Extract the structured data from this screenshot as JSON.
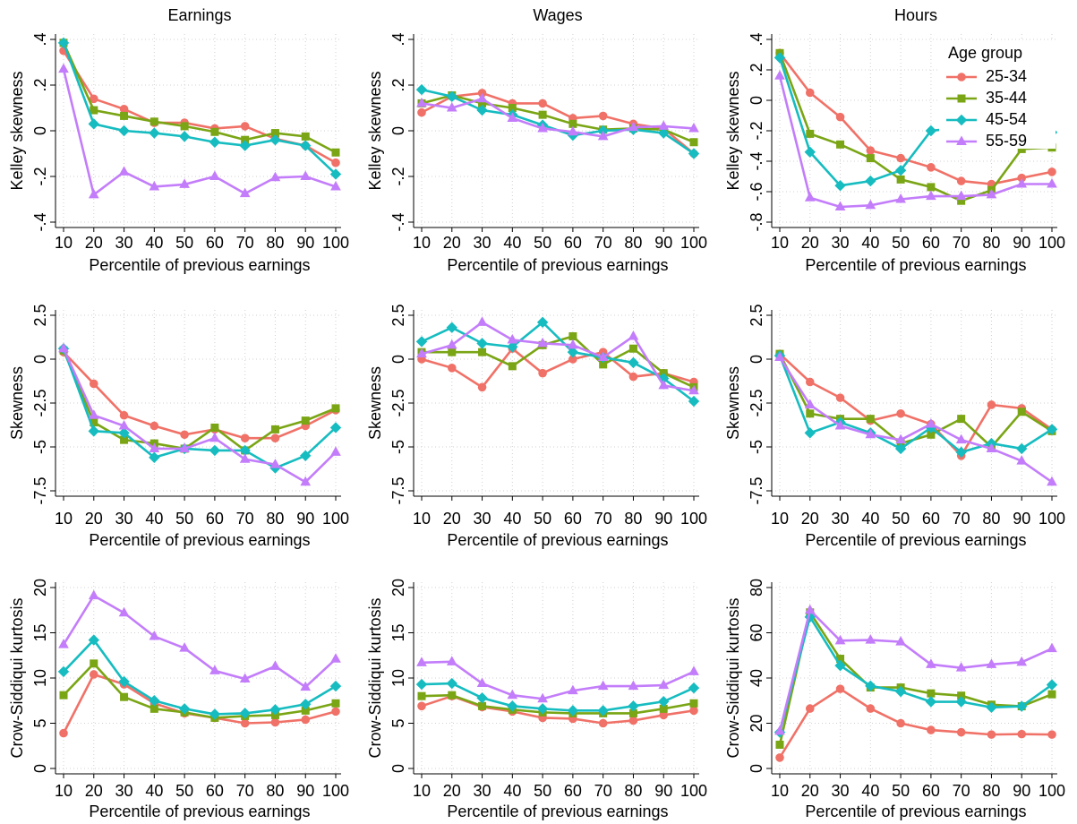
{
  "chart_data": [
    {
      "type": "line",
      "title": "Earnings",
      "xlabel": "Percentile of previous earnings",
      "ylabel": "Kelley skewness",
      "x": [
        10,
        20,
        30,
        40,
        50,
        60,
        70,
        80,
        90,
        100
      ],
      "xlim": [
        10,
        100
      ],
      "xticks": [
        10,
        20,
        30,
        40,
        50,
        60,
        70,
        80,
        90,
        100
      ],
      "ylim": [
        -0.4,
        0.4
      ],
      "yticks": [
        {
          "value": 0.4,
          "label": ".4"
        },
        {
          "value": 0.2,
          "label": ".2"
        },
        0,
        {
          "value": -0.2,
          "label": "-.2"
        },
        {
          "value": -0.4,
          "label": "-.4"
        }
      ],
      "grid": true,
      "series": [
        {
          "color": "#f07167",
          "marker": "circle",
          "values": [
            0.35,
            0.14,
            0.095,
            0.035,
            0.035,
            0.01,
            0.02,
            -0.035,
            -0.065,
            -0.14
          ]
        },
        {
          "color": "#7aa515",
          "marker": "square",
          "values": [
            0.385,
            0.09,
            0.065,
            0.04,
            0.02,
            -0.005,
            -0.04,
            -0.01,
            -0.025,
            -0.095
          ]
        },
        {
          "color": "#16bcc0",
          "marker": "diamond",
          "values": [
            0.385,
            0.03,
            0,
            -0.01,
            -0.025,
            -0.05,
            -0.065,
            -0.04,
            -0.065,
            -0.19
          ]
        },
        {
          "color": "#c37dfa",
          "marker": "triangle",
          "values": [
            0.27,
            -0.28,
            -0.18,
            -0.245,
            -0.235,
            -0.2,
            -0.275,
            -0.205,
            -0.2,
            -0.245
          ]
        }
      ]
    },
    {
      "type": "line",
      "title": "Wages",
      "xlabel": "Percentile of previous earnings",
      "ylabel": "Kelley skewness",
      "x": [
        10,
        20,
        30,
        40,
        50,
        60,
        70,
        80,
        90,
        100
      ],
      "xlim": [
        10,
        100
      ],
      "xticks": [
        10,
        20,
        30,
        40,
        50,
        60,
        70,
        80,
        90,
        100
      ],
      "ylim": [
        -0.4,
        0.4
      ],
      "yticks": [
        {
          "value": 0.4,
          "label": ".4"
        },
        {
          "value": 0.2,
          "label": ".2"
        },
        0,
        {
          "value": -0.2,
          "label": "-.2"
        },
        {
          "value": -0.4,
          "label": "-.4"
        }
      ],
      "grid": true,
      "series": [
        {
          "color": "#f07167",
          "marker": "circle",
          "values": [
            0.08,
            0.15,
            0.165,
            0.12,
            0.12,
            0.055,
            0.065,
            0.03,
            0.01,
            -0.1
          ]
        },
        {
          "color": "#7aa515",
          "marker": "square",
          "values": [
            0.12,
            0.155,
            0.12,
            0.1,
            0.07,
            0.03,
            0.005,
            0.01,
            0.005,
            -0.05
          ]
        },
        {
          "color": "#16bcc0",
          "marker": "diamond",
          "values": [
            0.18,
            0.15,
            0.09,
            0.07,
            0.025,
            -0.02,
            0,
            0.005,
            -0.01,
            -0.1
          ]
        },
        {
          "color": "#c37dfa",
          "marker": "triangle",
          "values": [
            0.12,
            0.1,
            0.14,
            0.055,
            0.01,
            -0.005,
            -0.025,
            0.015,
            0.02,
            0.01
          ]
        }
      ]
    },
    {
      "type": "line",
      "title": "Hours",
      "xlabel": "Percentile of previous earnings",
      "ylabel": "Kelley skewness",
      "x": [
        10,
        20,
        30,
        40,
        50,
        60,
        70,
        80,
        90,
        100
      ],
      "xlim": [
        10,
        100
      ],
      "xticks": [
        10,
        20,
        30,
        40,
        50,
        60,
        70,
        80,
        90,
        100
      ],
      "ylim": [
        -0.8,
        0.4
      ],
      "yticks": [
        {
          "value": 0.4,
          "label": ".4"
        },
        {
          "value": 0.2,
          "label": ".2"
        },
        0,
        {
          "value": -0.2,
          "label": "-.2"
        },
        {
          "value": -0.4,
          "label": "-.4"
        },
        {
          "value": -0.6,
          "label": "-.6"
        },
        {
          "value": -0.8,
          "label": "-.8"
        }
      ],
      "grid": true,
      "legend_title": "Age group",
      "legend": "top right",
      "series": [
        {
          "name": "25-34",
          "color": "#f07167",
          "marker": "circle",
          "values": [
            0.31,
            0.05,
            -0.11,
            -0.33,
            -0.38,
            -0.44,
            -0.53,
            -0.55,
            -0.51,
            -0.47
          ]
        },
        {
          "name": "35-44",
          "color": "#7aa515",
          "marker": "square",
          "values": [
            0.31,
            -0.22,
            -0.29,
            -0.38,
            -0.52,
            -0.57,
            -0.66,
            -0.59,
            -0.32,
            -0.31
          ]
        },
        {
          "name": "45-54",
          "color": "#16bcc0",
          "marker": "diamond",
          "values": [
            0.28,
            -0.34,
            -0.56,
            -0.53,
            -0.46,
            -0.2,
            -0.18,
            -0.12,
            -0.2,
            -0.21
          ]
        },
        {
          "name": "55-59",
          "color": "#c37dfa",
          "marker": "triangle",
          "values": [
            0.16,
            -0.64,
            -0.7,
            -0.69,
            -0.65,
            -0.63,
            -0.63,
            -0.62,
            -0.55,
            -0.55
          ]
        }
      ]
    },
    {
      "type": "line",
      "xlabel": "Percentile of previous earnings",
      "ylabel": "Skewness",
      "x": [
        10,
        20,
        30,
        40,
        50,
        60,
        70,
        80,
        90,
        100
      ],
      "xlim": [
        10,
        100
      ],
      "xticks": [
        10,
        20,
        30,
        40,
        50,
        60,
        70,
        80,
        90,
        100
      ],
      "ylim": [
        -7.5,
        2.5
      ],
      "yticks": [
        2.5,
        0,
        -2.5,
        -5,
        -7.5
      ],
      "grid": true,
      "series": [
        {
          "color": "#f07167",
          "marker": "circle",
          "values": [
            0.4,
            -1.4,
            -3.2,
            -3.8,
            -4.3,
            -4.0,
            -4.5,
            -4.5,
            -3.8,
            -2.9
          ]
        },
        {
          "color": "#7aa515",
          "marker": "square",
          "values": [
            0.5,
            -3.6,
            -4.6,
            -4.8,
            -5.1,
            -3.9,
            -5.2,
            -4.0,
            -3.5,
            -2.8
          ]
        },
        {
          "color": "#16bcc0",
          "marker": "diamond",
          "values": [
            0.6,
            -4.1,
            -4.2,
            -5.6,
            -5.1,
            -5.2,
            -5.2,
            -6.2,
            -5.5,
            -3.9
          ]
        },
        {
          "color": "#c37dfa",
          "marker": "triangle",
          "values": [
            0.6,
            -3.2,
            -3.8,
            -5.1,
            -5.1,
            -4.5,
            -5.7,
            -6.0,
            -7.0,
            -5.3
          ]
        }
      ]
    },
    {
      "type": "line",
      "xlabel": "Percentile of previous earnings",
      "ylabel": "Skewness",
      "x": [
        10,
        20,
        30,
        40,
        50,
        60,
        70,
        80,
        90,
        100
      ],
      "xlim": [
        10,
        100
      ],
      "xticks": [
        10,
        20,
        30,
        40,
        50,
        60,
        70,
        80,
        90,
        100
      ],
      "ylim": [
        -7.5,
        2.5
      ],
      "yticks": [
        2.5,
        0,
        -2.5,
        -5,
        -7.5
      ],
      "grid": true,
      "series": [
        {
          "color": "#f07167",
          "marker": "circle",
          "values": [
            0,
            -0.5,
            -1.6,
            0.6,
            -0.8,
            0,
            0.4,
            -1.0,
            -0.8,
            -1.3
          ]
        },
        {
          "color": "#7aa515",
          "marker": "square",
          "values": [
            0.4,
            0.4,
            0.4,
            -0.4,
            0.8,
            1.3,
            -0.3,
            0.6,
            -0.8,
            -1.6
          ]
        },
        {
          "color": "#16bcc0",
          "marker": "diamond",
          "values": [
            1.0,
            1.8,
            0.9,
            0.7,
            2.1,
            0.4,
            0.1,
            -0.2,
            -1.1,
            -2.4
          ]
        },
        {
          "color": "#c37dfa",
          "marker": "triangle",
          "values": [
            0.3,
            0.8,
            2.1,
            1.1,
            0.9,
            0.8,
            0.1,
            1.3,
            -1.5,
            -1.8
          ]
        }
      ]
    },
    {
      "type": "line",
      "xlabel": "Percentile of previous earnings",
      "ylabel": "Skewness",
      "x": [
        10,
        20,
        30,
        40,
        50,
        60,
        70,
        80,
        90,
        100
      ],
      "xlim": [
        10,
        100
      ],
      "xticks": [
        10,
        20,
        30,
        40,
        50,
        60,
        70,
        80,
        90,
        100
      ],
      "ylim": [
        -7.5,
        2.5
      ],
      "yticks": [
        2.5,
        0,
        -2.5,
        -5,
        -7.5
      ],
      "grid": true,
      "series": [
        {
          "color": "#f07167",
          "marker": "circle",
          "values": [
            0.3,
            -1.3,
            -2.2,
            -3.5,
            -3.1,
            -3.7,
            -5.5,
            -2.6,
            -2.8,
            -4.0
          ]
        },
        {
          "color": "#7aa515",
          "marker": "square",
          "values": [
            0.3,
            -3.1,
            -3.4,
            -3.4,
            -4.8,
            -4.3,
            -3.4,
            -5.0,
            -3.0,
            -4.1
          ]
        },
        {
          "color": "#16bcc0",
          "marker": "diamond",
          "values": [
            0.2,
            -4.2,
            -3.6,
            -4.2,
            -5.1,
            -3.9,
            -5.3,
            -4.8,
            -5.1,
            -4.0
          ]
        },
        {
          "color": "#c37dfa",
          "marker": "triangle",
          "values": [
            0.1,
            -2.6,
            -3.8,
            -4.3,
            -4.6,
            -3.7,
            -4.6,
            -5.1,
            -5.8,
            -7.0
          ]
        }
      ]
    },
    {
      "type": "line",
      "xlabel": "Percentile of previous earnings",
      "ylabel": "Crow-Siddiqui kurtosis",
      "x": [
        10,
        20,
        30,
        40,
        50,
        60,
        70,
        80,
        90,
        100
      ],
      "xlim": [
        10,
        100
      ],
      "xticks": [
        10,
        20,
        30,
        40,
        50,
        60,
        70,
        80,
        90,
        100
      ],
      "ylim": [
        0,
        20
      ],
      "yticks": [
        20,
        15,
        10,
        5,
        0
      ],
      "grid": true,
      "series": [
        {
          "color": "#f07167",
          "marker": "circle",
          "values": [
            3.9,
            10.4,
            9.3,
            7.2,
            6.1,
            5.6,
            5.0,
            5.1,
            5.4,
            6.3
          ]
        },
        {
          "color": "#7aa515",
          "marker": "square",
          "values": [
            8.1,
            11.6,
            7.9,
            6.6,
            6.2,
            5.6,
            5.8,
            5.9,
            6.4,
            7.2
          ]
        },
        {
          "color": "#16bcc0",
          "marker": "diamond",
          "values": [
            10.7,
            14.2,
            9.6,
            7.5,
            6.6,
            6.0,
            6.1,
            6.5,
            7.1,
            9.1
          ]
        },
        {
          "color": "#c37dfa",
          "marker": "triangle",
          "values": [
            13.7,
            19.1,
            17.2,
            14.6,
            13.3,
            10.8,
            9.9,
            11.3,
            9.0,
            12.1
          ]
        }
      ]
    },
    {
      "type": "line",
      "xlabel": "Percentile of previous earnings",
      "ylabel": "Crow-Siddiqui kurtosis",
      "x": [
        10,
        20,
        30,
        40,
        50,
        60,
        70,
        80,
        90,
        100
      ],
      "xlim": [
        10,
        100
      ],
      "xticks": [
        10,
        20,
        30,
        40,
        50,
        60,
        70,
        80,
        90,
        100
      ],
      "ylim": [
        0,
        20
      ],
      "yticks": [
        20,
        15,
        10,
        5,
        0
      ],
      "grid": true,
      "series": [
        {
          "color": "#f07167",
          "marker": "circle",
          "values": [
            6.9,
            8.0,
            6.8,
            6.3,
            5.6,
            5.5,
            5.0,
            5.3,
            5.9,
            6.4
          ]
        },
        {
          "color": "#7aa515",
          "marker": "square",
          "values": [
            8.0,
            8.1,
            6.9,
            6.5,
            6.2,
            6.1,
            6.1,
            6.1,
            6.6,
            7.2
          ]
        },
        {
          "color": "#16bcc0",
          "marker": "diamond",
          "values": [
            9.3,
            9.4,
            7.8,
            6.9,
            6.6,
            6.4,
            6.4,
            6.9,
            7.4,
            8.9
          ]
        },
        {
          "color": "#c37dfa",
          "marker": "triangle",
          "values": [
            11.7,
            11.8,
            9.4,
            8.1,
            7.7,
            8.6,
            9.1,
            9.1,
            9.2,
            10.7
          ]
        }
      ]
    },
    {
      "type": "line",
      "xlabel": "Percentile of previous earnings",
      "ylabel": "Crow-Siddiqui kurtosis",
      "x": [
        10,
        20,
        30,
        40,
        50,
        60,
        70,
        80,
        90,
        100
      ],
      "xlim": [
        10,
        100
      ],
      "xticks": [
        10,
        20,
        30,
        40,
        50,
        60,
        70,
        80,
        90,
        100
      ],
      "ylim": [
        0,
        80
      ],
      "yticks": [
        80,
        60,
        40,
        20,
        0
      ],
      "grid": true,
      "series": [
        {
          "color": "#f07167",
          "marker": "circle",
          "values": [
            4.8,
            26.5,
            35.2,
            26.5,
            20,
            17,
            16,
            15,
            15.2,
            15
          ]
        },
        {
          "color": "#7aa515",
          "marker": "square",
          "values": [
            10.5,
            69,
            48.5,
            35.8,
            35.8,
            33.2,
            32.2,
            28.2,
            27.5,
            32.8
          ]
        },
        {
          "color": "#16bcc0",
          "marker": "diamond",
          "values": [
            16,
            67,
            45.5,
            36.5,
            34,
            29.5,
            29.5,
            27,
            27.5,
            37
          ]
        },
        {
          "color": "#c37dfa",
          "marker": "triangle",
          "values": [
            16.5,
            70,
            56.5,
            56.8,
            56,
            46,
            44.5,
            46,
            47,
            53
          ]
        }
      ]
    }
  ]
}
